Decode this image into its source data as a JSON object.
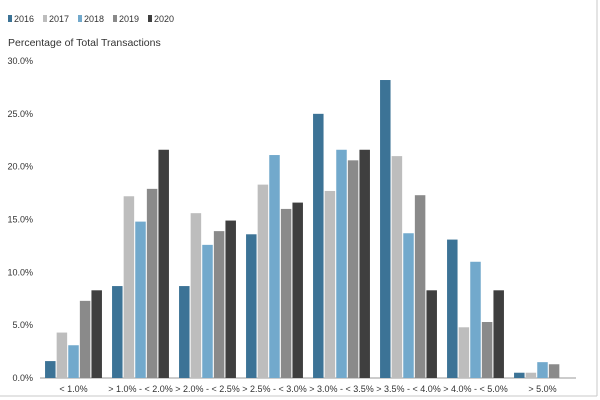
{
  "chart_data": {
    "type": "bar",
    "title": "",
    "ylabel": "Percentage of Total Transactions",
    "xlabel": "",
    "ylim": [
      0,
      30
    ],
    "yticks": [
      0,
      5,
      10,
      15,
      20,
      25,
      30
    ],
    "ytick_labels": [
      "0.0%",
      "5.0%",
      "10.0%",
      "15.0%",
      "20.0%",
      "25.0%",
      "30.0%"
    ],
    "grid": false,
    "legend_position": "top-left",
    "categories": [
      "< 1.0%",
      "> 1.0% - < 2.0%",
      "> 2.0% - < 2.5%",
      "> 2.5% - < 3.0%",
      "> 3.0% - < 3.5%",
      "> 3.5% - < 4.0%",
      "> 4.0% - < 5.0%",
      "> 5.0%"
    ],
    "series": [
      {
        "name": "2016",
        "color": "#3c7396",
        "values": [
          1.6,
          8.7,
          8.7,
          13.6,
          25.0,
          28.2,
          13.1,
          0.5
        ]
      },
      {
        "name": "2017",
        "color": "#bdbdbd",
        "values": [
          4.3,
          17.2,
          15.6,
          18.3,
          17.7,
          21.0,
          4.8,
          0.5
        ]
      },
      {
        "name": "2018",
        "color": "#72a9cc",
        "values": [
          3.1,
          14.8,
          12.6,
          21.1,
          21.6,
          13.7,
          11.0,
          1.5
        ]
      },
      {
        "name": "2019",
        "color": "#8a8a8a",
        "values": [
          7.3,
          17.9,
          13.9,
          16.0,
          20.6,
          17.3,
          5.3,
          1.3
        ]
      },
      {
        "name": "2020",
        "color": "#3f3f3f",
        "values": [
          8.3,
          21.6,
          14.9,
          16.6,
          21.6,
          8.3,
          8.3,
          0.0
        ]
      }
    ]
  }
}
